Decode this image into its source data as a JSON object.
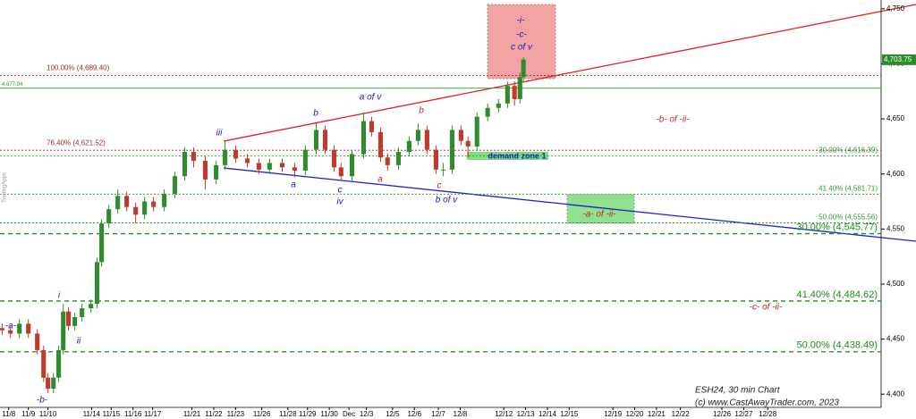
{
  "chart_data": {
    "type": "candlestick",
    "xlim": [
      -0.4,
      40
    ],
    "ylim": [
      4388,
      4758
    ],
    "xticks": [
      {
        "value": 0,
        "label": "11/8"
      },
      {
        "value": 0.9,
        "label": "11/9"
      },
      {
        "value": 1.8,
        "label": "11/10"
      },
      {
        "value": 3.8,
        "label": "11/14"
      },
      {
        "value": 4.7,
        "label": "11/15"
      },
      {
        "value": 5.7,
        "label": "11/16"
      },
      {
        "value": 6.6,
        "label": "11/17"
      },
      {
        "value": 8.4,
        "label": "11/21"
      },
      {
        "value": 9.4,
        "label": "11/22"
      },
      {
        "value": 10.4,
        "label": "11/23"
      },
      {
        "value": 11.6,
        "label": "11/26"
      },
      {
        "value": 12.8,
        "label": "11/28"
      },
      {
        "value": 13.7,
        "label": "11/29"
      },
      {
        "value": 14.7,
        "label": "11/30"
      },
      {
        "value": 15.6,
        "label": "Dec"
      },
      {
        "value": 16.4,
        "label": "12/3"
      },
      {
        "value": 17.6,
        "label": "12/5"
      },
      {
        "value": 18.6,
        "label": "12/6"
      },
      {
        "value": 19.7,
        "label": "12/7"
      },
      {
        "value": 20.7,
        "label": "12/8"
      },
      {
        "value": 22.7,
        "label": "12/12"
      },
      {
        "value": 23.7,
        "label": "12/13"
      },
      {
        "value": 24.7,
        "label": "12/14"
      },
      {
        "value": 25.7,
        "label": "12/15"
      },
      {
        "value": 27.7,
        "label": "12/19"
      },
      {
        "value": 28.7,
        "label": "12/20"
      },
      {
        "value": 29.7,
        "label": "12/21"
      },
      {
        "value": 30.8,
        "label": "12/22"
      },
      {
        "value": 32.7,
        "label": "12/26"
      },
      {
        "value": 33.7,
        "label": "12/27"
      },
      {
        "value": 34.8,
        "label": "12/28"
      }
    ],
    "yticks": [
      {
        "value": 4400,
        "label": "4,400"
      },
      {
        "value": 4450,
        "label": "4,450"
      },
      {
        "value": 4500,
        "label": "4,500"
      },
      {
        "value": 4550,
        "label": "4,550"
      },
      {
        "value": 4600,
        "label": "4,600"
      },
      {
        "value": 4650,
        "label": "4,650"
      },
      {
        "value": 4700,
        "label": "4,700"
      },
      {
        "value": 4750,
        "label": "4,750"
      }
    ],
    "up_color": "#2e8b2e",
    "down_color": "#c0392b",
    "x": [
      -0.3,
      0.08,
      0.49,
      0.9,
      1.31,
      1.6,
      1.8,
      2.05,
      2.29,
      2.5,
      2.74,
      3.03,
      3.36,
      3.77,
      4.05,
      4.26,
      4.59,
      5.0,
      5.41,
      5.82,
      6.23,
      6.64,
      7.13,
      7.62,
      8.07,
      8.48,
      9.01,
      9.51,
      9.92,
      10.41,
      10.94,
      11.47,
      11.96,
      12.54,
      13.11,
      13.6,
      14.1,
      14.51,
      14.92,
      15.24,
      15.74,
      16.27,
      16.64,
      17.05,
      17.37,
      17.87,
      18.36,
      18.77,
      19.18,
      19.59,
      19.92,
      20.33,
      20.74,
      21.06,
      21.47,
      21.96,
      22.46,
      22.87,
      23.19,
      23.44,
      23.6
    ],
    "open": [
      4460,
      4458,
      4455,
      4464,
      4455,
      4440,
      4415,
      4405,
      4415,
      4440,
      4475,
      4462,
      4470,
      4478,
      4482,
      4520,
      4555,
      4568,
      4580,
      4570,
      4563,
      4575,
      4570,
      4582,
      4598,
      4620,
      4612,
      4595,
      4608,
      4622,
      4614,
      4610,
      4604,
      4610,
      4606,
      4603,
      4622,
      4640,
      4622,
      4606,
      4598,
      4618,
      4648,
      4638,
      4615,
      4608,
      4620,
      4630,
      4640,
      4622,
      4604,
      4604,
      4640,
      4630,
      4625,
      4652,
      4660,
      4664,
      4680,
      4668,
      4688
    ],
    "high": [
      4464,
      4462,
      4468,
      4468,
      4459,
      4444,
      4419,
      4419,
      4444,
      4482,
      4479,
      4474,
      4482,
      4486,
      4524,
      4559,
      4572,
      4586,
      4584,
      4574,
      4579,
      4579,
      4586,
      4602,
      4624,
      4624,
      4616,
      4612,
      4630,
      4626,
      4618,
      4614,
      4614,
      4614,
      4610,
      4626,
      4646,
      4644,
      4626,
      4610,
      4622,
      4656,
      4652,
      4642,
      4619,
      4624,
      4634,
      4646,
      4644,
      4626,
      4610,
      4644,
      4644,
      4634,
      4656,
      4664,
      4668,
      4684,
      4684,
      4692,
      4706
    ],
    "low": [
      4454,
      4451,
      4451,
      4451,
      4436,
      4411,
      4401,
      4401,
      4411,
      4436,
      4458,
      4458,
      4466,
      4474,
      4478,
      4516,
      4551,
      4564,
      4566,
      4555,
      4559,
      4566,
      4566,
      4578,
      4594,
      4606,
      4586,
      4591,
      4604,
      4610,
      4606,
      4600,
      4600,
      4602,
      4597,
      4599,
      4618,
      4618,
      4602,
      4594,
      4594,
      4614,
      4634,
      4611,
      4603,
      4604,
      4616,
      4626,
      4618,
      4600,
      4598,
      4600,
      4626,
      4615,
      4621,
      4648,
      4656,
      4660,
      4662,
      4664,
      4684
    ],
    "close": [
      4458,
      4455,
      4464,
      4455,
      4440,
      4415,
      4405,
      4415,
      4440,
      4475,
      4462,
      4470,
      4478,
      4482,
      4520,
      4555,
      4568,
      4580,
      4570,
      4563,
      4575,
      4570,
      4582,
      4598,
      4620,
      4612,
      4595,
      4608,
      4622,
      4614,
      4610,
      4604,
      4610,
      4606,
      4603,
      4622,
      4640,
      4622,
      4606,
      4598,
      4618,
      4648,
      4638,
      4615,
      4608,
      4620,
      4630,
      4640,
      4622,
      4604,
      4604,
      4640,
      4630,
      4625,
      4652,
      4660,
      4664,
      4680,
      4668,
      4688,
      4704
    ],
    "last": {
      "value": 4703.75,
      "label": "4,703.75",
      "color": "#2e8b2e"
    },
    "levels": [
      {
        "value": 4689.4,
        "label": "100.00% (4,689.40)",
        "color": "#a52a2a",
        "style": "dotted"
      },
      {
        "value": 4677.94,
        "label": "4,677.94",
        "color": "#2e9b2e",
        "style": "solid"
      },
      {
        "value": 4621.52,
        "label": "76.40% (4,621.52)",
        "color": "#a52a2a",
        "style": "dotted"
      },
      {
        "value": 4616.39,
        "label": "30.00% (4,616.39)",
        "color": "#2e9b2e",
        "style": "dotted"
      },
      {
        "value": 4581.71,
        "label": "41.40% (4,581.71)",
        "color": "#2e9b2e",
        "style": "dotted"
      },
      {
        "value": 4555.56,
        "label": "50.00% (4,555.56)",
        "color": "#2e9b2e",
        "style": "dotted"
      },
      {
        "value": 4545.77,
        "label": "30.00% (4,545.77)",
        "color": "#1e8b1e",
        "style": "dashed"
      },
      {
        "value": 4484.62,
        "label": "41.40% (4,484.62)",
        "color": "#1e8b1e",
        "style": "dashed"
      },
      {
        "value": 4438.49,
        "label": "50.00% (4,438.49)",
        "color": "#1e8b1e",
        "style": "dashed"
      }
    ],
    "annotations": [
      "-a-",
      "-b-",
      "i",
      "ii",
      "iii",
      "a",
      "b",
      "c",
      "iv",
      "a of v",
      "a",
      "b",
      "c",
      "b of v",
      "-i-",
      "-c-",
      "c of v",
      "-b- of -ii-",
      "-a- of -ii-",
      "-c- of -ii-",
      "demand zone 1"
    ],
    "footer": [
      "ESH24, 30 min Chart",
      "(c) www.CastAwayTrader.com, 2023"
    ],
    "watermark": "TradingApps"
  }
}
